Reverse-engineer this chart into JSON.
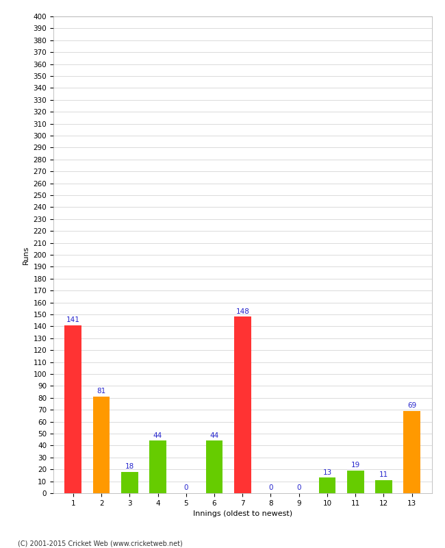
{
  "xlabel": "Innings (oldest to newest)",
  "ylabel": "Runs",
  "categories": [
    1,
    2,
    3,
    4,
    5,
    6,
    7,
    8,
    9,
    10,
    11,
    12,
    13
  ],
  "values": [
    141,
    81,
    18,
    44,
    0,
    44,
    148,
    0,
    0,
    13,
    19,
    11,
    69
  ],
  "bar_colors": [
    "#ff3333",
    "#ff9900",
    "#66cc00",
    "#66cc00",
    "#66cc00",
    "#66cc00",
    "#ff3333",
    "#66cc00",
    "#66cc00",
    "#66cc00",
    "#66cc00",
    "#66cc00",
    "#ff9900"
  ],
  "ylim": [
    0,
    400
  ],
  "label_color": "#2222cc",
  "label_fontsize": 7.5,
  "axis_fontsize": 8,
  "tick_fontsize": 7.5,
  "background_color": "#ffffff",
  "grid_color": "#cccccc",
  "footer": "(C) 2001-2015 Cricket Web (www.cricketweb.net)"
}
